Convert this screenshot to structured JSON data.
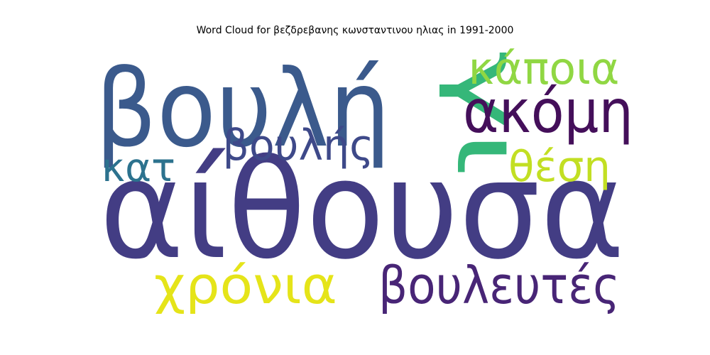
{
  "title": "Word Cloud for βεζδρεβανης κωνσταντινου ηλιας in 1991-2000",
  "words": [
    {
      "text": "αίθουσα",
      "color": "#433d84"
    },
    {
      "text": "βουλή",
      "color": "#3b5a8c"
    },
    {
      "text": "γι",
      "color": "#35b779"
    },
    {
      "text": "κάποια",
      "color": "#90d743"
    },
    {
      "text": "ακόμη",
      "color": "#440f5a"
    },
    {
      "text": "βουλής",
      "color": "#3e4989"
    },
    {
      "text": "κατ",
      "color": "#2c728e"
    },
    {
      "text": "θέση",
      "color": "#c2df23"
    },
    {
      "text": "χρόνια",
      "color": "#e5e419"
    },
    {
      "text": "βουλευτές",
      "color": "#482576"
    }
  ]
}
